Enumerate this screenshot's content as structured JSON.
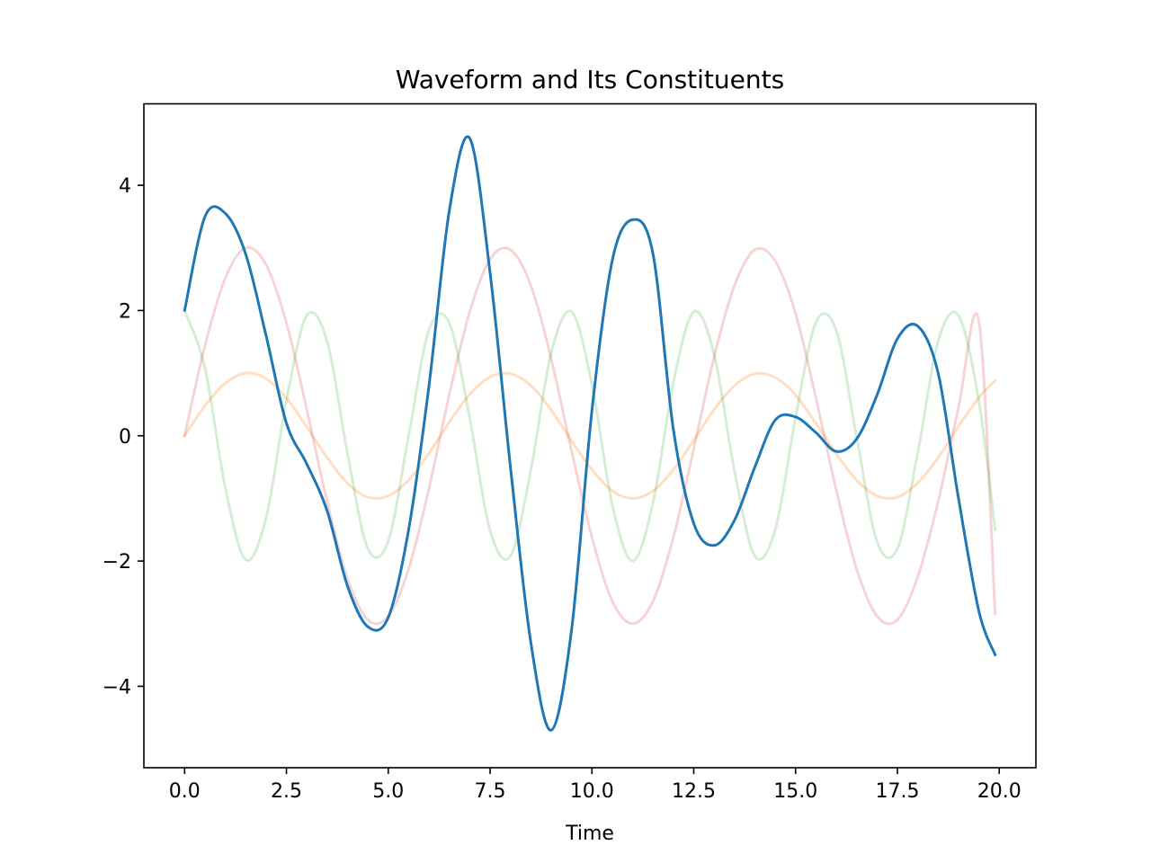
{
  "chart_data": {
    "type": "line",
    "title": "Waveform and Its Constituents",
    "xlabel": "Time",
    "ylabel": "",
    "xlim": [
      -1.0,
      20.9
    ],
    "ylim": [
      -5.3,
      5.3
    ],
    "x_ticks": [
      0.0,
      2.5,
      5.0,
      7.5,
      10.0,
      12.5,
      15.0,
      17.5,
      20.0
    ],
    "x_tick_labels": [
      "0.0",
      "2.5",
      "5.0",
      "7.5",
      "10.0",
      "12.5",
      "15.0",
      "17.5",
      "20.0"
    ],
    "y_ticks": [
      -4,
      -2,
      0,
      2,
      4
    ],
    "y_tick_labels": [
      "−4",
      "−2",
      "0",
      "2",
      "4"
    ],
    "grid": false,
    "legend": "none",
    "x": [
      0.0,
      0.5,
      1.0,
      1.5,
      2.0,
      2.5,
      3.0,
      3.5,
      4.0,
      4.5,
      5.0,
      5.5,
      6.0,
      6.5,
      7.0,
      7.5,
      8.0,
      8.5,
      9.0,
      9.5,
      10.0,
      10.5,
      11.0,
      11.5,
      12.0,
      12.5,
      13.0,
      13.5,
      14.0,
      14.5,
      15.0,
      15.5,
      16.0,
      16.5,
      17.0,
      17.5,
      18.0,
      18.5,
      19.0,
      19.5,
      19.9
    ],
    "series": [
      {
        "color": "#ff7f0e",
        "opacity": 0.25,
        "values": [
          0.0,
          0.48,
          0.84,
          1.0,
          0.91,
          0.6,
          0.14,
          -0.35,
          -0.76,
          -0.98,
          -0.96,
          -0.71,
          -0.28,
          0.22,
          0.66,
          0.94,
          0.99,
          0.8,
          0.41,
          -0.08,
          -0.54,
          -0.88,
          -1.0,
          -0.88,
          -0.54,
          -0.07,
          0.42,
          0.8,
          0.99,
          0.93,
          0.65,
          0.2,
          -0.29,
          -0.71,
          -0.96,
          -0.98,
          -0.75,
          -0.35,
          0.15,
          0.61,
          0.88
        ]
      },
      {
        "color": "#d62728",
        "opacity": 0.2,
        "values": [
          0.0,
          1.44,
          2.52,
          3.0,
          2.73,
          1.8,
          0.42,
          -1.05,
          -2.28,
          -2.94,
          -2.88,
          -2.13,
          -0.84,
          0.66,
          1.98,
          2.82,
          2.97,
          2.4,
          1.23,
          -0.24,
          -1.62,
          -2.64,
          -3.0,
          -2.64,
          -1.62,
          -0.21,
          1.26,
          2.4,
          2.97,
          2.79,
          1.95,
          0.6,
          -0.87,
          -2.13,
          -2.88,
          -2.94,
          -2.25,
          -1.05,
          0.45,
          1.83,
          -2.85
        ]
      },
      {
        "color": "#2ca02c",
        "opacity": 0.2,
        "values": [
          2.0,
          1.08,
          -0.83,
          -1.98,
          -1.31,
          0.56,
          1.92,
          1.5,
          -0.29,
          -1.8,
          -1.68,
          0.0,
          1.69,
          1.8,
          0.28,
          -1.51,
          -1.92,
          -0.55,
          1.32,
          1.98,
          0.82,
          -1.1,
          -2.0,
          -1.07,
          0.85,
          1.98,
          1.3,
          -0.56,
          -1.92,
          -1.5,
          0.29,
          1.81,
          1.68,
          -0.02,
          -1.69,
          -1.8,
          -0.27,
          1.51,
          1.92,
          0.55,
          -1.5
        ]
      },
      {
        "color": "#1f77b4",
        "opacity": 1.0,
        "values": [
          2.0,
          3.5,
          3.55,
          2.9,
          1.6,
          0.2,
          -0.45,
          -1.2,
          -2.4,
          -3.05,
          -2.9,
          -1.5,
          0.8,
          3.6,
          4.75,
          2.6,
          -0.5,
          -3.3,
          -4.7,
          -3.1,
          0.4,
          2.8,
          3.45,
          2.9,
          0.1,
          -1.4,
          -1.75,
          -1.35,
          -0.5,
          0.25,
          0.3,
          0.05,
          -0.25,
          -0.05,
          0.65,
          1.55,
          1.75,
          1.0,
          -1.0,
          -2.8,
          -3.5
        ]
      }
    ]
  }
}
